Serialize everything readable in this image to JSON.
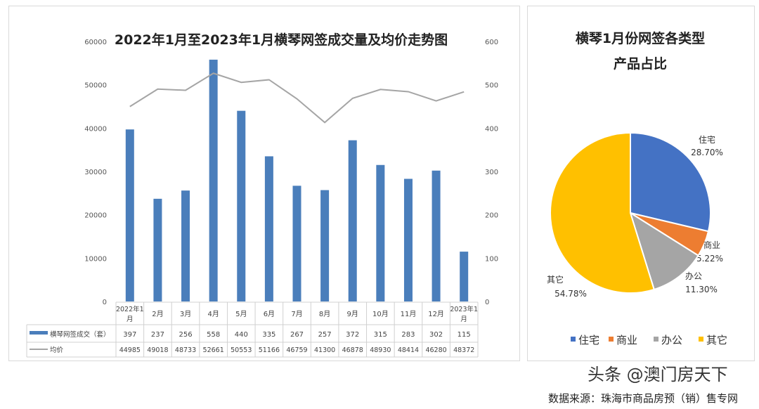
{
  "chart_data": [
    {
      "type": "bar+line",
      "title": "2022年1月至2023年1月横琴网签成交量及均价走势图",
      "categories": [
        "2022年1月",
        "2月",
        "3月",
        "4月",
        "5月",
        "6月",
        "7月",
        "8月",
        "9月",
        "10月",
        "11月",
        "12月",
        "2023年1月"
      ],
      "series": [
        {
          "name": "横琴网签成交（套）",
          "type": "bar",
          "axis": "right",
          "color": "#4A7EBB",
          "values": [
            397,
            237,
            256,
            558,
            440,
            335,
            267,
            257,
            372,
            315,
            283,
            302,
            115
          ]
        },
        {
          "name": "均价",
          "type": "line",
          "axis": "left",
          "color": "#A5A5A5",
          "values": [
            44985,
            49018,
            48733,
            52661,
            50553,
            51166,
            46759,
            41300,
            46878,
            48930,
            48414,
            46280,
            48372
          ]
        }
      ],
      "left_axis": {
        "ylim": [
          0,
          60000
        ],
        "ticks": [
          "0",
          "10000",
          "20000",
          "30000",
          "40000",
          "50000",
          "60000"
        ]
      },
      "right_axis": {
        "ylim": [
          0,
          600
        ],
        "ticks": [
          "0",
          "100",
          "200",
          "300",
          "400",
          "500",
          "600"
        ]
      },
      "data_table": true
    },
    {
      "type": "pie",
      "title_lines": [
        "横琴1月份网签各类型",
        "产品占比"
      ],
      "labels": [
        "住宅",
        "商业",
        "办公",
        "其它"
      ],
      "values": [
        28.7,
        5.22,
        11.3,
        54.78
      ],
      "value_labels": [
        "28.70%",
        "5.22%",
        "11.30%",
        "54.78%"
      ],
      "colors": [
        "#4472C4",
        "#ED7D31",
        "#A5A5A5",
        "#FFC000"
      ],
      "legend": "bottom"
    }
  ],
  "source": "数据来源：珠海市商品房预（销）售专网",
  "watermark": "头条 @澳门房天下"
}
